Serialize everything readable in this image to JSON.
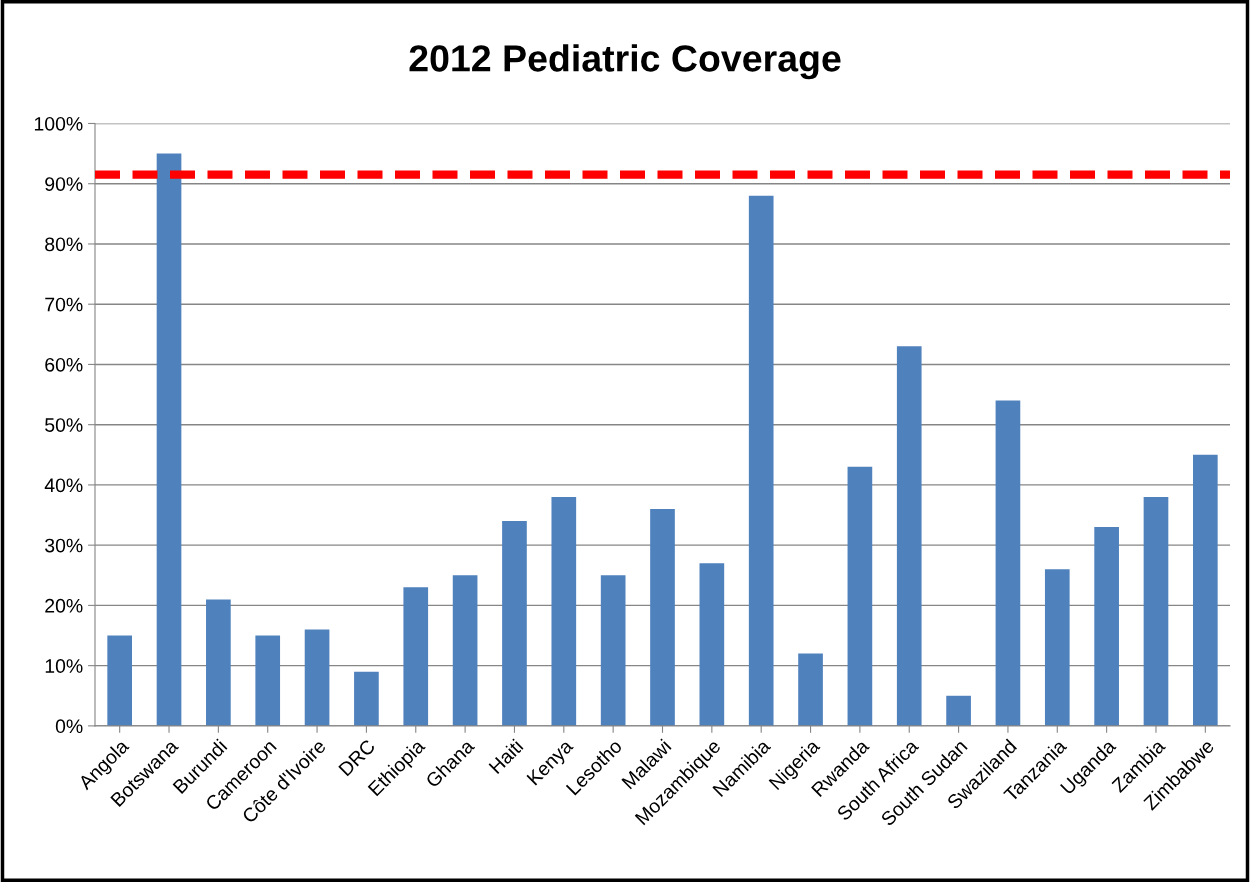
{
  "chart_data": {
    "type": "bar",
    "title": "2012 Pediatric Coverage",
    "categories": [
      "Angola",
      "Botswana",
      "Burundi",
      "Cameroon",
      "Côte d'Ivoire",
      "DRC",
      "Ethiopia",
      "Ghana",
      "Haiti",
      "Kenya",
      "Lesotho",
      "Malawi",
      "Mozambique",
      "Namibia",
      "Nigeria",
      "Rwanda",
      "South Africa",
      "South Sudan",
      "Swaziland",
      "Tanzania",
      "Uganda",
      "Zambia",
      "Zimbabwe"
    ],
    "values": [
      15,
      95,
      21,
      15,
      16,
      9,
      23,
      25,
      34,
      38,
      25,
      36,
      27,
      88,
      12,
      43,
      63,
      5,
      54,
      26,
      33,
      38,
      45
    ],
    "color": "#4f81bd",
    "ylim": [
      0,
      100
    ],
    "yticks": [
      {
        "value": 0,
        "label": "0%"
      },
      {
        "value": 10,
        "label": "10%"
      },
      {
        "value": 20,
        "label": "20%"
      },
      {
        "value": 30,
        "label": "30%"
      },
      {
        "value": 40,
        "label": "40%"
      },
      {
        "value": 50,
        "label": "50%"
      },
      {
        "value": 60,
        "label": "60%"
      },
      {
        "value": 70,
        "label": "70%"
      },
      {
        "value": 80,
        "label": "80%"
      },
      {
        "value": 90,
        "label": "90%"
      },
      {
        "value": 100,
        "label": "100%"
      }
    ],
    "grid": "y",
    "ref_lines": [
      {
        "axis": "y",
        "value": 91.5,
        "color": "#ff0000",
        "line_style": "dashed"
      }
    ]
  }
}
